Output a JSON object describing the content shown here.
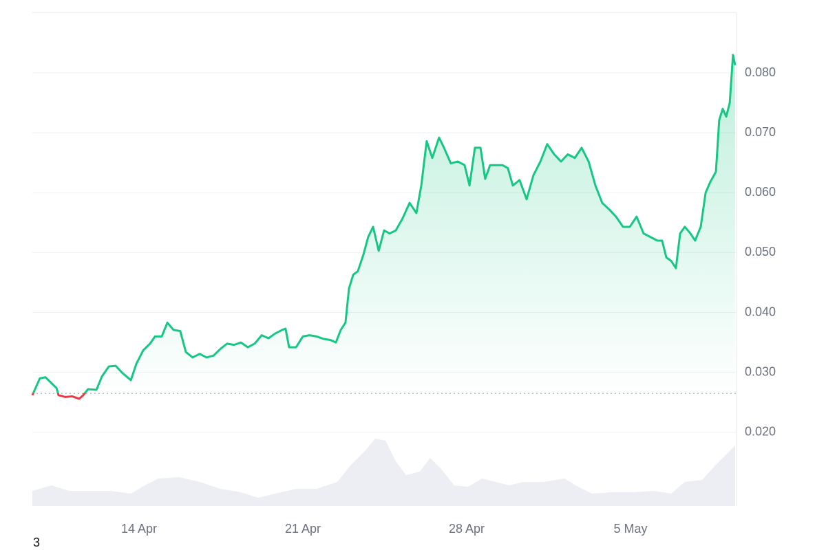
{
  "chart_data": {
    "type": "line",
    "x": [
      9.44,
      9.76,
      10.0,
      10.26,
      10.47,
      10.56,
      10.85,
      11.15,
      11.44,
      11.59,
      11.82,
      12.18,
      12.41,
      12.71,
      13.0,
      13.29,
      13.65,
      13.88,
      14.18,
      14.47,
      14.68,
      14.97,
      15.21,
      15.47,
      15.76,
      16.0,
      16.29,
      16.59,
      16.88,
      17.18,
      17.47,
      17.76,
      18.06,
      18.35,
      18.65,
      18.94,
      19.24,
      19.53,
      19.82,
      20.12,
      20.26,
      20.41,
      20.71,
      21.0,
      21.29,
      21.59,
      21.88,
      22.18,
      22.41,
      22.62,
      22.82,
      22.97,
      23.15,
      23.35,
      23.59,
      23.79,
      24.0,
      24.24,
      24.47,
      24.71,
      24.97,
      25.26,
      25.56,
      25.85,
      26.06,
      26.29,
      26.53,
      26.82,
      27.03,
      27.32,
      27.62,
      27.91,
      28.12,
      28.35,
      28.59,
      28.79,
      29.0,
      29.24,
      29.53,
      29.76,
      29.97,
      30.26,
      30.56,
      30.85,
      31.15,
      31.44,
      31.74,
      32.03,
      32.32,
      32.62,
      32.91,
      33.21,
      33.5,
      33.79,
      34.09,
      34.38,
      34.68,
      34.97,
      35.26,
      35.56,
      35.85,
      36.15,
      36.35,
      36.53,
      36.74,
      36.94,
      37.12,
      37.32,
      37.56,
      37.76,
      38.0,
      38.21,
      38.41,
      38.65,
      38.79,
      38.94,
      39.09,
      39.24,
      39.38,
      39.47
    ],
    "series": [
      {
        "color": "#16c784",
        "below_color": "#ea3943",
        "values": [
          0.0262,
          0.029,
          0.0292,
          0.0282,
          0.0274,
          0.0262,
          0.0259,
          0.026,
          0.0256,
          0.0261,
          0.0272,
          0.0271,
          0.0293,
          0.031,
          0.0311,
          0.0299,
          0.0287,
          0.0314,
          0.0337,
          0.0348,
          0.036,
          0.036,
          0.0383,
          0.0371,
          0.0369,
          0.0334,
          0.0325,
          0.0331,
          0.0325,
          0.0328,
          0.0339,
          0.0348,
          0.0346,
          0.035,
          0.0342,
          0.0348,
          0.0362,
          0.0357,
          0.0365,
          0.0371,
          0.0373,
          0.0342,
          0.0342,
          0.036,
          0.0362,
          0.036,
          0.0356,
          0.0354,
          0.035,
          0.0371,
          0.0383,
          0.044,
          0.0463,
          0.0469,
          0.0497,
          0.0526,
          0.0543,
          0.0503,
          0.0537,
          0.0532,
          0.0537,
          0.0557,
          0.0583,
          0.0566,
          0.0612,
          0.0686,
          0.0658,
          0.0692,
          0.0675,
          0.0649,
          0.0652,
          0.0646,
          0.0612,
          0.0675,
          0.0675,
          0.0623,
          0.0646,
          0.0646,
          0.0646,
          0.0641,
          0.0612,
          0.0621,
          0.0589,
          0.0629,
          0.0652,
          0.0681,
          0.0664,
          0.0652,
          0.0664,
          0.0658,
          0.0675,
          0.0652,
          0.0612,
          0.0583,
          0.0572,
          0.056,
          0.0543,
          0.0543,
          0.056,
          0.0532,
          0.0526,
          0.052,
          0.052,
          0.0492,
          0.0486,
          0.0474,
          0.0532,
          0.0543,
          0.0532,
          0.052,
          0.0543,
          0.06,
          0.0618,
          0.0635,
          0.0721,
          0.074,
          0.0727,
          0.075,
          0.083,
          0.0813
        ]
      },
      {
        "color": "#eceef3",
        "axis": "y2",
        "x": [
          9.44,
          10.26,
          11.0,
          11.88,
          12.76,
          13.65,
          14.24,
          14.82,
          15.71,
          16.59,
          17.47,
          18.35,
          19.09,
          19.82,
          20.71,
          21.59,
          22.47,
          23.06,
          23.65,
          24.09,
          24.53,
          24.97,
          25.41,
          26.0,
          26.44,
          26.88,
          27.47,
          28.06,
          28.65,
          29.24,
          29.82,
          30.41,
          31.29,
          32.18,
          32.76,
          33.35,
          34.24,
          35.12,
          36.0,
          36.74,
          37.32,
          38.06,
          38.65,
          39.09,
          39.47
        ],
        "values": [
          22,
          30,
          22,
          22,
          22,
          18,
          30,
          40,
          42,
          35,
          25,
          20,
          12,
          18,
          25,
          25,
          35,
          60,
          80,
          98,
          95,
          65,
          45,
          50,
          70,
          55,
          30,
          28,
          40,
          35,
          30,
          35,
          35,
          40,
          28,
          18,
          20,
          20,
          22,
          18,
          35,
          38,
          60,
          75,
          88
        ]
      }
    ],
    "baseline": 0.0265,
    "xlim": [
      9.44,
      39.53
    ],
    "xticks": [
      {
        "value": 14,
        "label": "14 Apr"
      },
      {
        "value": 21,
        "label": "21 Apr"
      },
      {
        "value": 28,
        "label": "28 Apr"
      },
      {
        "value": 35,
        "label": "5 May"
      }
    ],
    "ylim": [
      0.0077,
      0.0901
    ],
    "yticks": [
      {
        "value": 0.02,
        "label": "0.020"
      },
      {
        "value": 0.03,
        "label": "0.030"
      },
      {
        "value": 0.04,
        "label": "0.040"
      },
      {
        "value": 0.05,
        "label": "0.050"
      },
      {
        "value": 0.06,
        "label": "0.060"
      },
      {
        "value": 0.07,
        "label": "0.070"
      },
      {
        "value": 0.08,
        "label": "0.080"
      }
    ],
    "y2lim": [
      0,
      718
    ],
    "grid": true,
    "note": "3"
  }
}
